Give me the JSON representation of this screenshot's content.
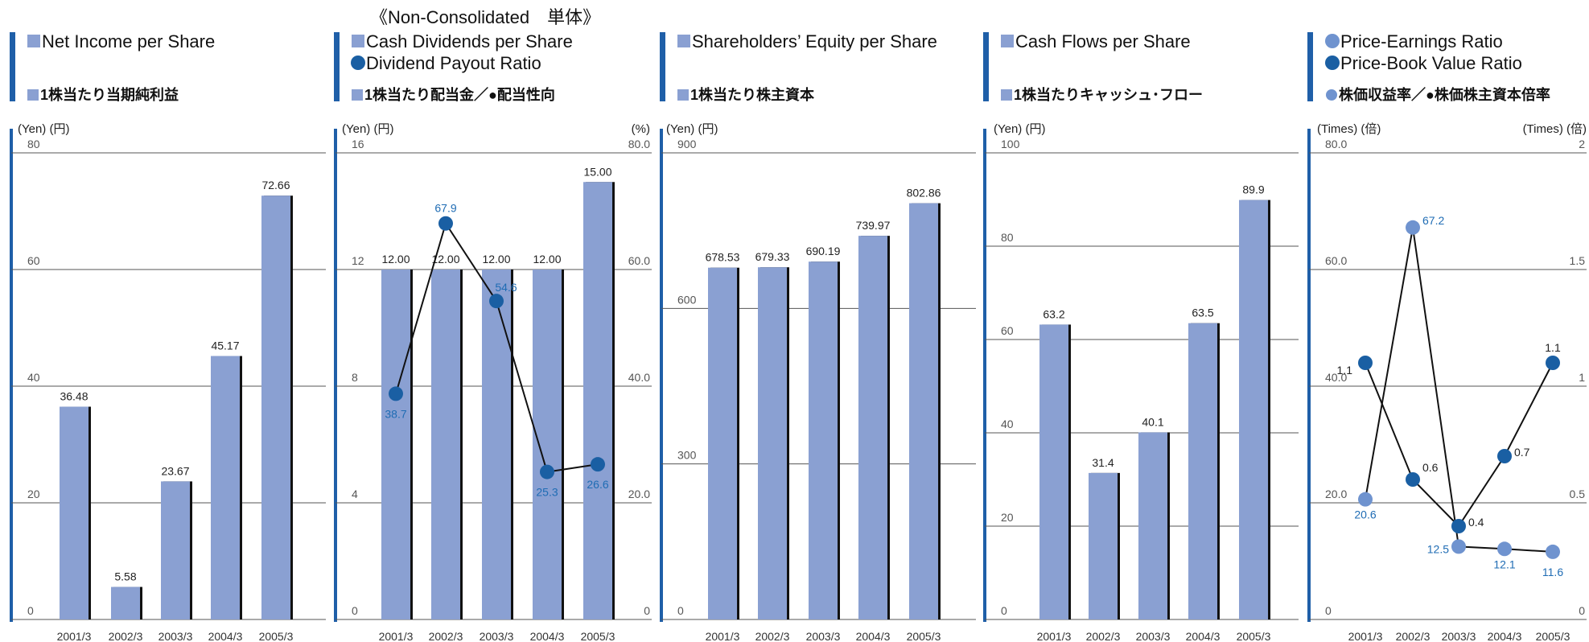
{
  "top_note": "《Non-Consolidated　単体》",
  "colors": {
    "bar": "#8aa0d2",
    "accent": "#1f5fa8",
    "line_marker": "#1a5fa3",
    "line_marker_light": "#6f93cf"
  },
  "chart_data": [
    {
      "type": "bar",
      "title": "Net Income per Share",
      "subtitle": "1株当たり当期純利益",
      "ylabel": "(Yen) (円)",
      "categories": [
        "2001/3",
        "2002/3",
        "2003/3",
        "2004/3",
        "2005/3"
      ],
      "values": [
        36.48,
        5.58,
        23.67,
        45.17,
        72.66
      ],
      "value_labels": [
        "36.48",
        "5.58",
        "23.67",
        "45.17",
        "72.66"
      ],
      "ylim": [
        0,
        80
      ],
      "yticks": [
        "0",
        "20",
        "40",
        "60",
        "80"
      ],
      "grid": true
    },
    {
      "type": "bar",
      "title": "Cash Dividends per Share",
      "title2": "Dividend Payout Ratio",
      "subtitle": "1株当たり配当金／●配当性向",
      "ylabel": "(Yen) (円)",
      "ylabel_right": "(%)",
      "categories": [
        "2001/3",
        "2002/3",
        "2003/3",
        "2004/3",
        "2005/3"
      ],
      "values": [
        12.0,
        12.0,
        12.0,
        12.0,
        15.0
      ],
      "value_labels": [
        "12.00",
        "12.00",
        "12.00",
        "12.00",
        "15.00"
      ],
      "ylim": [
        0,
        16
      ],
      "yticks": [
        "0",
        "4",
        "8",
        "12",
        "16"
      ],
      "ylim_right": [
        0,
        80
      ],
      "yticks_right": [
        "0",
        "20.0",
        "40.0",
        "60.0",
        "80.0"
      ],
      "line": {
        "values": [
          38.7,
          67.9,
          54.6,
          25.3,
          26.6
        ],
        "labels": [
          "38.7",
          "67.9",
          "54.6",
          "25.3",
          "26.6"
        ]
      },
      "grid": true
    },
    {
      "type": "bar",
      "title": "Shareholders’ Equity per Share",
      "subtitle": "1株当たり株主資本",
      "ylabel": "(Yen) (円)",
      "categories": [
        "2001/3",
        "2002/3",
        "2003/3",
        "2004/3",
        "2005/3"
      ],
      "values": [
        678.53,
        679.33,
        690.19,
        739.97,
        802.86
      ],
      "value_labels": [
        "678.53",
        "679.33",
        "690.19",
        "739.97",
        "802.86"
      ],
      "ylim": [
        0,
        900
      ],
      "yticks": [
        "0",
        "300",
        "600",
        "900"
      ],
      "grid": true
    },
    {
      "type": "bar",
      "title": "Cash Flows per Share",
      "subtitle": "1株当たりキャッシュ･フロー",
      "ylabel": "(Yen) (円)",
      "categories": [
        "2001/3",
        "2002/3",
        "2003/3",
        "2004/3",
        "2005/3"
      ],
      "values": [
        63.2,
        31.4,
        40.1,
        63.5,
        89.9
      ],
      "value_labels": [
        "63.2",
        "31.4",
        "40.1",
        "63.5",
        "89.9"
      ],
      "ylim": [
        0,
        100
      ],
      "yticks": [
        "0",
        "20",
        "40",
        "60",
        "80",
        "100"
      ],
      "grid": true
    },
    {
      "type": "line",
      "title": "Price-Earnings Ratio",
      "title2": "Price-Book Value Ratio",
      "subtitle": "株価収益率／●株価株主資本倍率",
      "ylabel": "(Times) (倍)",
      "ylabel_right": "(Times) (倍)",
      "categories": [
        "2001/3",
        "2002/3",
        "2003/3",
        "2004/3",
        "2005/3"
      ],
      "ylim": [
        0,
        80
      ],
      "yticks": [
        "0",
        "20.0",
        "40.0",
        "60.0",
        "80.0"
      ],
      "ylim_right": [
        0,
        2
      ],
      "yticks_right": [
        "0",
        "0.5",
        "1",
        "1.5",
        "2"
      ],
      "series": [
        {
          "name": "Price-Earnings Ratio",
          "axis": "left",
          "values": [
            20.6,
            67.2,
            12.5,
            12.1,
            11.6
          ],
          "labels": [
            "20.6",
            "67.2",
            "12.5",
            "12.1",
            "11.6"
          ]
        },
        {
          "name": "Price-Book Value Ratio",
          "axis": "right",
          "values": [
            1.1,
            0.6,
            0.4,
            0.7,
            1.1
          ],
          "labels": [
            "1.1",
            "0.6",
            "0.4",
            "0.7",
            "1.1"
          ]
        }
      ],
      "grid": true
    }
  ]
}
